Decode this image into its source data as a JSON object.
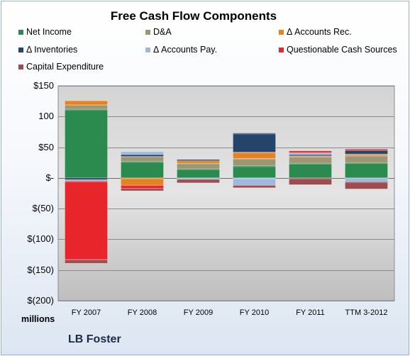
{
  "company": "LB Foster",
  "units_label": "millions",
  "colors": {
    "Net Income": "#2b8a4e",
    "D&A": "#9e9572",
    "Δ Accounts Rec.": "#e6821f",
    "Δ Inventories": "#24446c",
    "Δ Accounts Pay.": "#9fb8db",
    "Questionable Cash Sources": "#e8252a",
    "Capital Expenditure": "#9c4d52"
  },
  "chart_data": {
    "type": "bar",
    "stacked": true,
    "title": "Free Cash Flow Components",
    "xlabel": "",
    "ylabel": "",
    "ylim": [
      -200,
      150
    ],
    "yticks": [
      150,
      100,
      50,
      0,
      -50,
      -100,
      -150,
      -200
    ],
    "ytick_labels": [
      "$150",
      "100",
      "$50",
      "$-",
      "$(50)",
      "$(100)",
      "$(150)",
      "$(200)"
    ],
    "grid": true,
    "legend": "top",
    "categories": [
      "FY 2007",
      "FY 2008",
      "FY 2009",
      "FY 2010",
      "FY 2011",
      "TTM 3-2012"
    ],
    "series": [
      {
        "name": "Net Income",
        "values": [
          112,
          27,
          15,
          20,
          24,
          25
        ]
      },
      {
        "name": "D&A",
        "values": [
          7,
          8,
          9,
          12,
          11,
          12
        ]
      },
      {
        "name": "Δ Accounts Rec.",
        "values": [
          7,
          -12,
          4,
          10,
          1,
          2
        ]
      },
      {
        "name": "Δ Inventories",
        "values": [
          -3,
          3,
          2,
          31,
          2,
          6
        ]
      },
      {
        "name": "Δ Accounts Pay.",
        "values": [
          -2,
          5,
          -2,
          -12,
          3,
          -6
        ]
      },
      {
        "name": "Questionable Cash Sources",
        "values": [
          -128,
          -5,
          0,
          0,
          3,
          2
        ]
      },
      {
        "name": "Capital Expenditure",
        "values": [
          -6,
          -4,
          -6,
          -4,
          -11,
          -12
        ]
      }
    ]
  }
}
